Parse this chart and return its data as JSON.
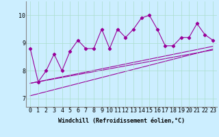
{
  "xlabel": "Windchill (Refroidissement éolien,°C)",
  "background_color": "#cceeff",
  "line_color": "#990099",
  "x_hours": [
    0,
    1,
    2,
    3,
    4,
    5,
    6,
    7,
    8,
    9,
    10,
    11,
    12,
    13,
    14,
    15,
    16,
    17,
    18,
    19,
    20,
    21,
    22,
    23
  ],
  "y_main": [
    8.8,
    7.6,
    8.0,
    8.6,
    8.0,
    8.7,
    9.1,
    8.8,
    8.8,
    9.5,
    8.8,
    9.5,
    9.2,
    9.5,
    9.9,
    10.0,
    9.5,
    8.9,
    8.9,
    9.2,
    9.2,
    9.7,
    9.3,
    9.1
  ],
  "reg_lines": [
    {
      "x": [
        0,
        23
      ],
      "y": [
        7.55,
        8.75
      ]
    },
    {
      "x": [
        0,
        23
      ],
      "y": [
        7.55,
        8.88
      ]
    },
    {
      "x": [
        0,
        23
      ],
      "y": [
        7.1,
        8.78
      ]
    }
  ],
  "ylim": [
    6.7,
    10.5
  ],
  "yticks": [
    7,
    8,
    9,
    10
  ],
  "xlim": [
    -0.5,
    23.5
  ],
  "grid_color": "#aaddcc",
  "axis_fontsize": 6,
  "tick_fontsize": 6
}
